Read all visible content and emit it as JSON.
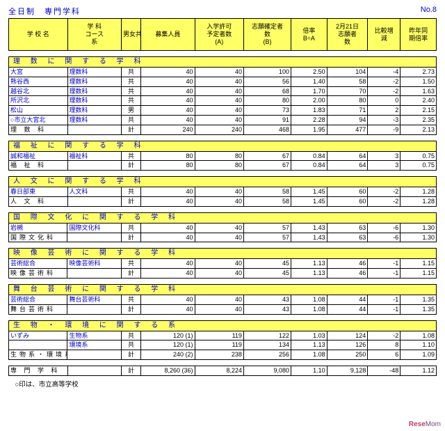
{
  "header": {
    "left1": "全日制",
    "left2": "専門学科",
    "right": "No.8"
  },
  "cols": [
    "学 校 名",
    "学 科\nコース\n系",
    "男女共",
    "募集人員",
    "入学許可\n予定者数\n(A)",
    "志願確定者\n数\n(B)",
    "倍率\nB÷A",
    "2月21日\n志願者\n数",
    "比較増\n減",
    "昨年同\n期倍率"
  ],
  "sections": [
    {
      "head": "理 数 に 関 す る 学 科",
      "rows": [
        [
          "大宮",
          "理数科",
          "共",
          "40",
          "40",
          "100",
          "2.50",
          "104",
          "-4",
          "2.73"
        ],
        [
          "熊谷西",
          "理数科",
          "共",
          "40",
          "40",
          "56",
          "1.40",
          "58",
          "-2",
          "1.50"
        ],
        [
          "越谷北",
          "理数科",
          "共",
          "40",
          "40",
          "68",
          "1.70",
          "70",
          "-2",
          "1.63"
        ],
        [
          "所沢北",
          "理数科",
          "共",
          "40",
          "40",
          "80",
          "2.00",
          "80",
          "0",
          "2.40"
        ],
        [
          "松山",
          "理数科",
          "男",
          "40",
          "40",
          "73",
          "1.83",
          "71",
          "2",
          "2.15"
        ],
        [
          "○市立大宮北",
          "理数科",
          "共",
          "40",
          "40",
          "91",
          "2.28",
          "94",
          "-3",
          "2.35"
        ]
      ],
      "sub": [
        "理 数 科",
        "",
        "計",
        "240",
        "240",
        "468",
        "1.95",
        "477",
        "-9",
        "2.13"
      ]
    },
    {
      "head": "福 祉 に 関 す る 学 科",
      "rows": [
        [
          "誠和福祉",
          "福祉科",
          "共",
          "80",
          "80",
          "67",
          "0.84",
          "64",
          "3",
          "0.75"
        ]
      ],
      "sub": [
        "福 祉 科",
        "",
        "計",
        "80",
        "80",
        "67",
        "0.84",
        "64",
        "3",
        "0.75"
      ]
    },
    {
      "head": "人 文 に 関 す る 学 科",
      "rows": [
        [
          "春日部東",
          "人文科",
          "共",
          "40",
          "40",
          "58",
          "1.45",
          "60",
          "-2",
          "1.28"
        ]
      ],
      "sub": [
        "人 文 科",
        "",
        "計",
        "40",
        "40",
        "58",
        "1.45",
        "60",
        "-2",
        "1.28"
      ]
    },
    {
      "head": "国 際 文 化 に 関 す る 学 科",
      "rows": [
        [
          "岩槻",
          "国際文化科",
          "共",
          "40",
          "40",
          "57",
          "1.43",
          "63",
          "-6",
          "1.30"
        ]
      ],
      "sub": [
        "国際文化科",
        "",
        "計",
        "40",
        "40",
        "57",
        "1.43",
        "63",
        "-6",
        "1.30"
      ]
    },
    {
      "head": "映 像 芸 術 に 関 す る 学 科",
      "rows": [
        [
          "芸術総合",
          "映像芸術科",
          "共",
          "40",
          "40",
          "45",
          "1.13",
          "46",
          "-1",
          "1.15"
        ]
      ],
      "sub": [
        "映像芸術科",
        "",
        "計",
        "40",
        "40",
        "45",
        "1.13",
        "46",
        "-1",
        "1.15"
      ]
    },
    {
      "head": "舞 台 芸 術 に 関 す る 学 科",
      "rows": [
        [
          "芸術総合",
          "舞台芸術科",
          "共",
          "40",
          "40",
          "43",
          "1.08",
          "44",
          "-1",
          "1.35"
        ]
      ],
      "sub": [
        "舞台芸術科",
        "",
        "計",
        "40",
        "40",
        "43",
        "1.08",
        "44",
        "-1",
        "1.35"
      ]
    },
    {
      "head": "生 物 ・ 環 境 に 関 す る 系",
      "rows": [
        [
          "いずみ",
          "生物系",
          "共",
          "120   (1)",
          "119",
          "122",
          "1.03",
          "124",
          "-2",
          "1.08"
        ],
        [
          "",
          "環境系",
          "共",
          "120   (1)",
          "119",
          "134",
          "1.13",
          "126",
          "8",
          "1.10"
        ]
      ],
      "sub": [
        "生物系・環境系",
        "",
        "計",
        "240   (2)",
        "238",
        "256",
        "1.08",
        "250",
        "6",
        "1.09"
      ]
    }
  ],
  "total": [
    "専 門 学 科",
    "",
    "計",
    "8,260  (36)",
    "8,224",
    "9,080",
    "1.10",
    "9,128",
    "-48",
    "1.12"
  ],
  "note": "　○印は、市立高等学校",
  "watermark": "ReseMom"
}
